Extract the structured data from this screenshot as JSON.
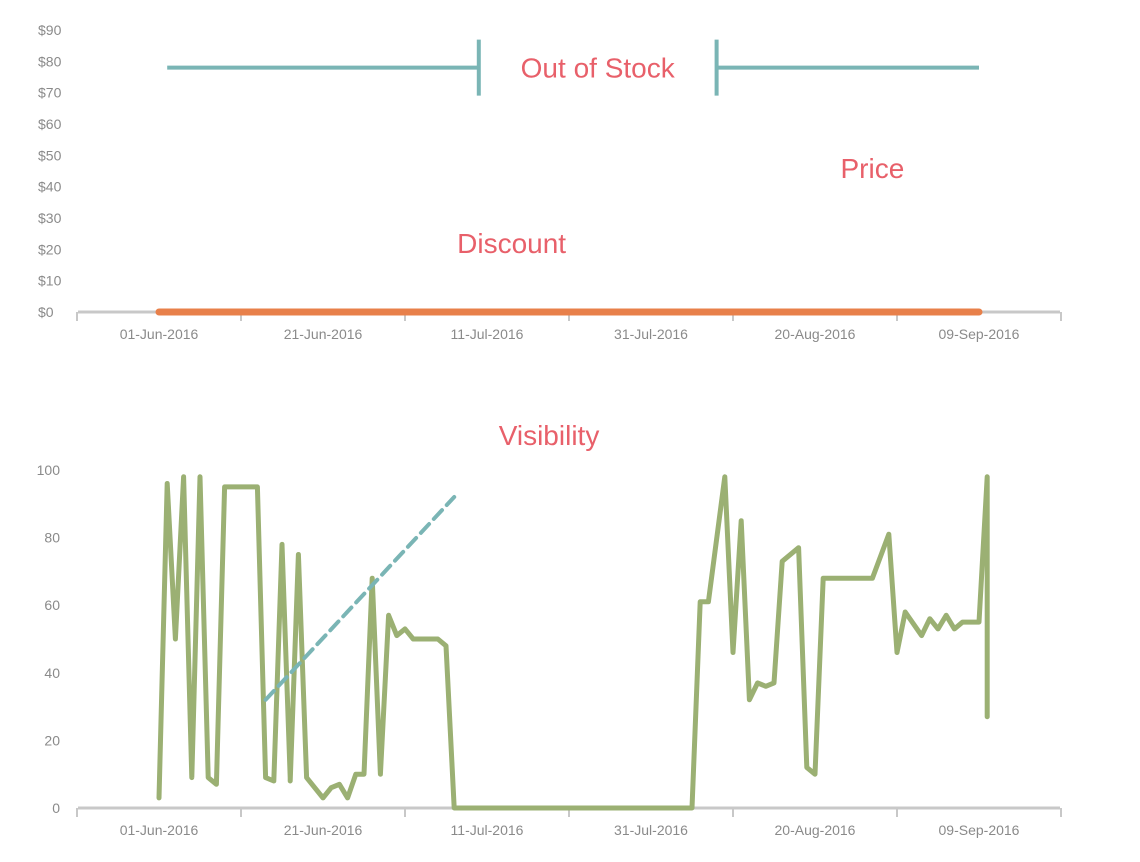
{
  "chart_data": [
    {
      "type": "line",
      "title": "",
      "xlabel": "",
      "ylabel": "",
      "x_dates": [
        "01-Jun-2016",
        "09-Sep-2016"
      ],
      "ylim": [
        0,
        90
      ],
      "y_ticks": [
        "$0",
        "$10",
        "$20",
        "$30",
        "$40",
        "$50",
        "$60",
        "$70",
        "$80",
        "$90"
      ],
      "x_ticks": [
        "01-Jun-2016",
        "21-Jun-2016",
        "11-Jul-2016",
        "31-Jul-2016",
        "20-Aug-2016",
        "09-Sep-2016"
      ],
      "series": [
        {
          "key": "discount",
          "color": "#e8804a",
          "points": [
            [
              "01-Jun-2016",
              0
            ],
            [
              "09-Sep-2016",
              0
            ]
          ]
        }
      ],
      "annotations": [
        {
          "text": "Out of Stock",
          "start": "02-Jun-2016",
          "end": "09-Sep-2016",
          "gap_start": "10-Jul-2016",
          "gap_end": "08-Aug-2016",
          "y": 78,
          "color": "#7ab5b5"
        },
        {
          "text": "Price",
          "date": "27-Aug-2016",
          "y": 46
        },
        {
          "text": "Discount",
          "date": "14-Jul-2016",
          "y": 22
        }
      ],
      "grid": false,
      "legend": "none"
    },
    {
      "type": "line",
      "title": "Visibility",
      "xlabel": "",
      "ylabel": "",
      "ylim": [
        0,
        100
      ],
      "y_ticks": [
        "0",
        "20",
        "40",
        "60",
        "80",
        "100"
      ],
      "x_ticks": [
        "01-Jun-2016",
        "21-Jun-2016",
        "11-Jul-2016",
        "31-Jul-2016",
        "20-Aug-2016",
        "09-Sep-2016"
      ],
      "series": [
        {
          "key": "visibility",
          "color": "#9bb073",
          "points": [
            [
              "01-Jun-2016",
              3
            ],
            [
              "02-Jun-2016",
              96
            ],
            [
              "03-Jun-2016",
              50
            ],
            [
              "04-Jun-2016",
              98
            ],
            [
              "05-Jun-2016",
              9
            ],
            [
              "06-Jun-2016",
              98
            ],
            [
              "07-Jun-2016",
              9
            ],
            [
              "08-Jun-2016",
              7
            ],
            [
              "09-Jun-2016",
              95
            ],
            [
              "13-Jun-2016",
              95
            ],
            [
              "14-Jun-2016",
              9
            ],
            [
              "15-Jun-2016",
              8
            ],
            [
              "16-Jun-2016",
              78
            ],
            [
              "17-Jun-2016",
              9
            ],
            [
              "17-Jun-2016",
              8
            ],
            [
              "18-Jun-2016",
              75
            ],
            [
              "19-Jun-2016",
              9
            ],
            [
              "21-Jun-2016",
              3
            ],
            [
              "22-Jun-2016",
              6
            ],
            [
              "23-Jun-2016",
              7
            ],
            [
              "24-Jun-2016",
              3
            ],
            [
              "25-Jun-2016",
              10
            ],
            [
              "26-Jun-2016",
              10
            ],
            [
              "27-Jun-2016",
              68
            ],
            [
              "28-Jun-2016",
              10
            ],
            [
              "29-Jun-2016",
              57
            ],
            [
              "30-Jun-2016",
              51
            ],
            [
              "01-Jul-2016",
              53
            ],
            [
              "02-Jul-2016",
              50
            ],
            [
              "05-Jul-2016",
              50
            ],
            [
              "06-Jul-2016",
              48
            ],
            [
              "07-Jul-2016",
              0
            ],
            [
              "05-Aug-2016",
              0
            ],
            [
              "06-Aug-2016",
              61
            ],
            [
              "07-Aug-2016",
              61
            ],
            [
              "09-Aug-2016",
              98
            ],
            [
              "10-Aug-2016",
              46
            ],
            [
              "11-Aug-2016",
              85
            ],
            [
              "12-Aug-2016",
              32
            ],
            [
              "13-Aug-2016",
              37
            ],
            [
              "14-Aug-2016",
              36
            ],
            [
              "15-Aug-2016",
              37
            ],
            [
              "16-Aug-2016",
              73
            ],
            [
              "18-Aug-2016",
              77
            ],
            [
              "19-Aug-2016",
              12
            ],
            [
              "20-Aug-2016",
              10
            ],
            [
              "21-Aug-2016",
              68
            ],
            [
              "27-Aug-2016",
              68
            ],
            [
              "29-Aug-2016",
              81
            ],
            [
              "30-Aug-2016",
              46
            ],
            [
              "31-Aug-2016",
              58
            ],
            [
              "02-Sep-2016",
              51
            ],
            [
              "03-Sep-2016",
              56
            ],
            [
              "04-Sep-2016",
              53
            ],
            [
              "05-Sep-2016",
              57
            ],
            [
              "06-Sep-2016",
              53
            ],
            [
              "07-Sep-2016",
              55
            ],
            [
              "09-Sep-2016",
              55
            ],
            [
              "10-Sep-2016",
              98
            ],
            [
              "10-Sep-2016",
              27
            ]
          ]
        },
        {
          "key": "trend",
          "color": "#7ab5b5",
          "dashed": true,
          "points": [
            [
              "14-Jun-2016",
              32
            ],
            [
              "07-Jul-2016",
              92
            ]
          ]
        }
      ],
      "grid": false,
      "legend": "none"
    }
  ]
}
